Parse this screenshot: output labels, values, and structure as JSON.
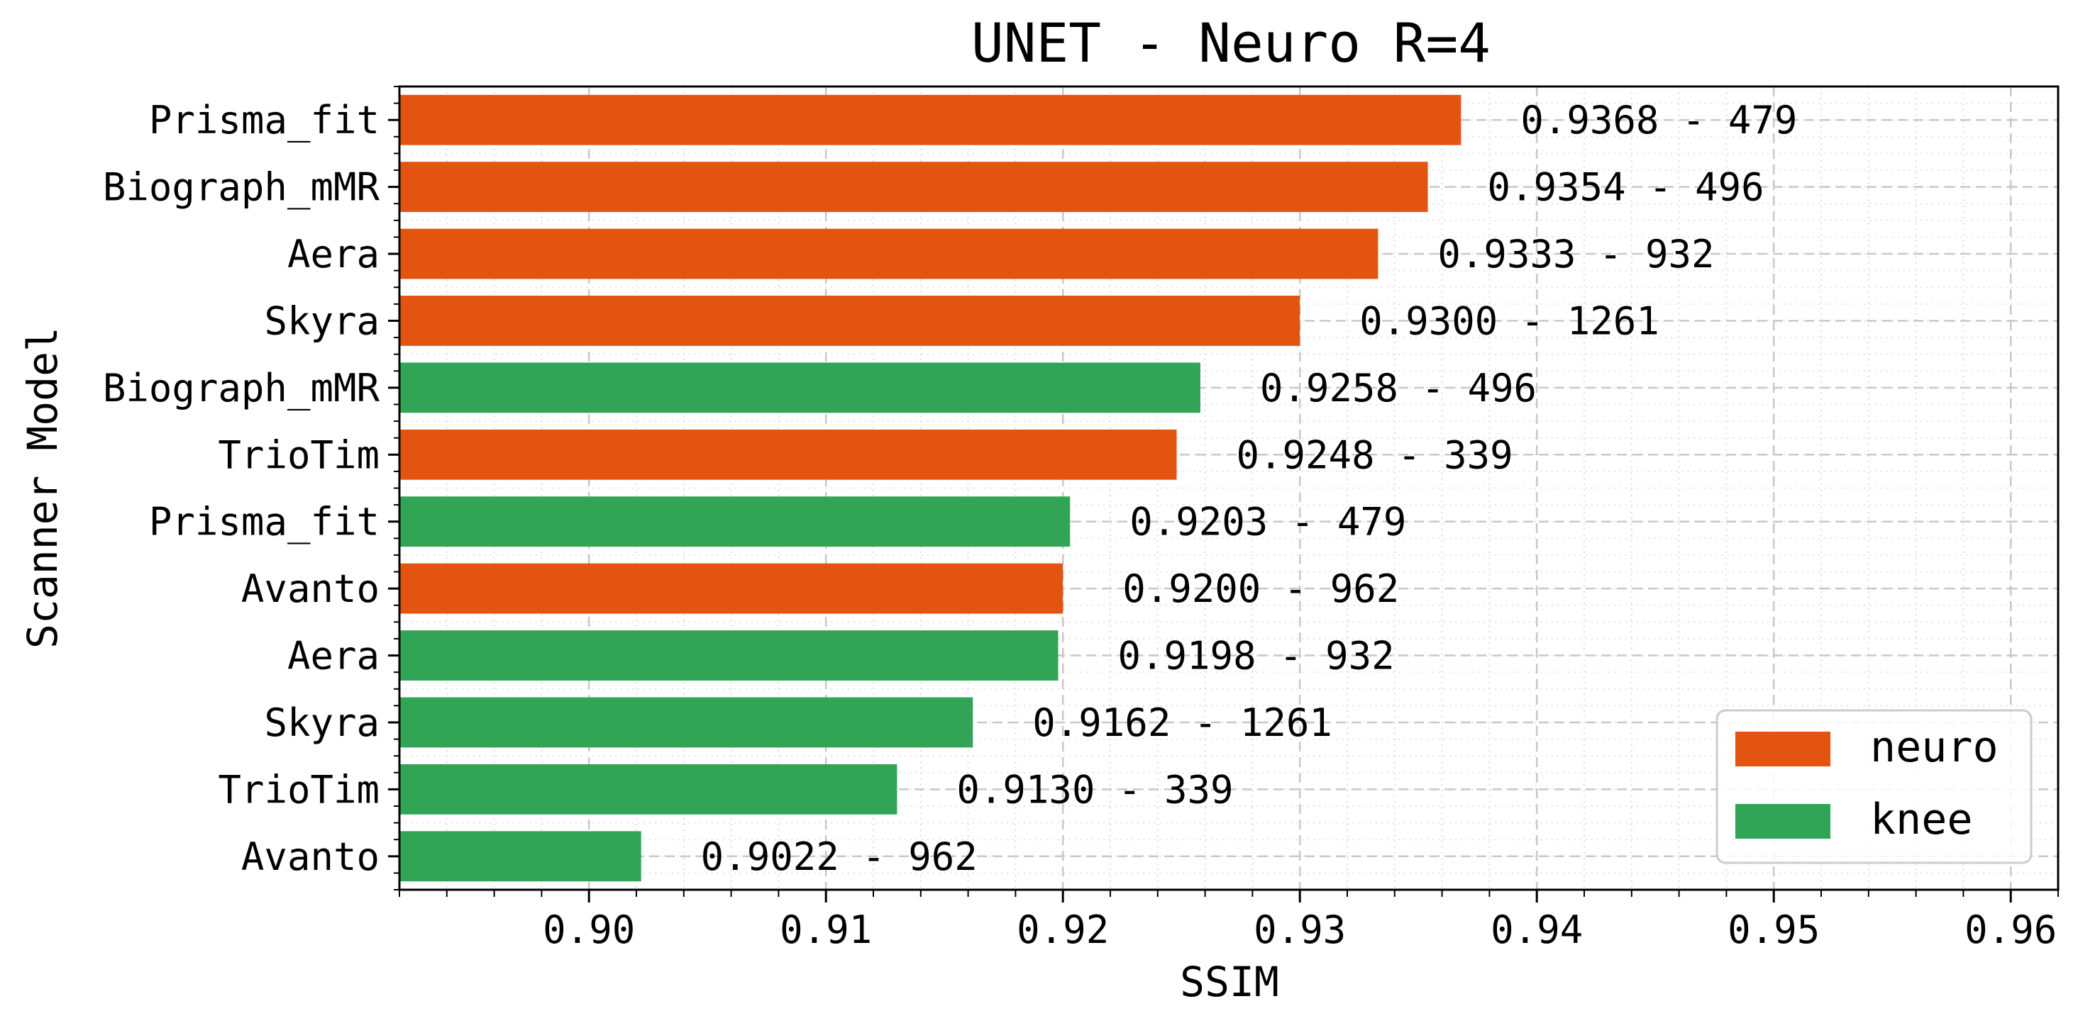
{
  "chart_data": {
    "type": "bar",
    "orientation": "horizontal",
    "title": "UNET - Neuro R=4",
    "xlabel": "SSIM",
    "ylabel": "Scanner Model",
    "xlim": [
      0.892,
      0.962
    ],
    "xticks": [
      0.9,
      0.91,
      0.92,
      0.93,
      0.94,
      0.95,
      0.96
    ],
    "xtick_labels": [
      "0.90",
      "0.91",
      "0.92",
      "0.93",
      "0.94",
      "0.95",
      "0.96"
    ],
    "grid": true,
    "legend": {
      "placement": "bottom-right",
      "entries": [
        "neuro",
        "knee"
      ]
    },
    "colors": {
      "neuro": "#E35411",
      "knee": "#31A455"
    },
    "bars": [
      {
        "label": "Prisma_fit",
        "group": "neuro",
        "value": 0.9368,
        "annotation": "0.9368 - 479"
      },
      {
        "label": "Biograph_mMR",
        "group": "neuro",
        "value": 0.9354,
        "annotation": "0.9354 - 496"
      },
      {
        "label": "Aera",
        "group": "neuro",
        "value": 0.9333,
        "annotation": "0.9333 - 932"
      },
      {
        "label": "Skyra",
        "group": "neuro",
        "value": 0.93,
        "annotation": "0.9300 - 1261"
      },
      {
        "label": "Biograph_mMR",
        "group": "knee",
        "value": 0.9258,
        "annotation": "0.9258 - 496"
      },
      {
        "label": "TrioTim",
        "group": "neuro",
        "value": 0.9248,
        "annotation": "0.9248 - 339"
      },
      {
        "label": "Prisma_fit",
        "group": "knee",
        "value": 0.9203,
        "annotation": "0.9203 - 479"
      },
      {
        "label": "Avanto",
        "group": "neuro",
        "value": 0.92,
        "annotation": "0.9200 - 962"
      },
      {
        "label": "Aera",
        "group": "knee",
        "value": 0.9198,
        "annotation": "0.9198 - 932"
      },
      {
        "label": "Skyra",
        "group": "knee",
        "value": 0.9162,
        "annotation": "0.9162 - 1261"
      },
      {
        "label": "TrioTim",
        "group": "knee",
        "value": 0.913,
        "annotation": "0.9130 - 339"
      },
      {
        "label": "Avanto",
        "group": "knee",
        "value": 0.9022,
        "annotation": "0.9022 - 962"
      }
    ]
  }
}
